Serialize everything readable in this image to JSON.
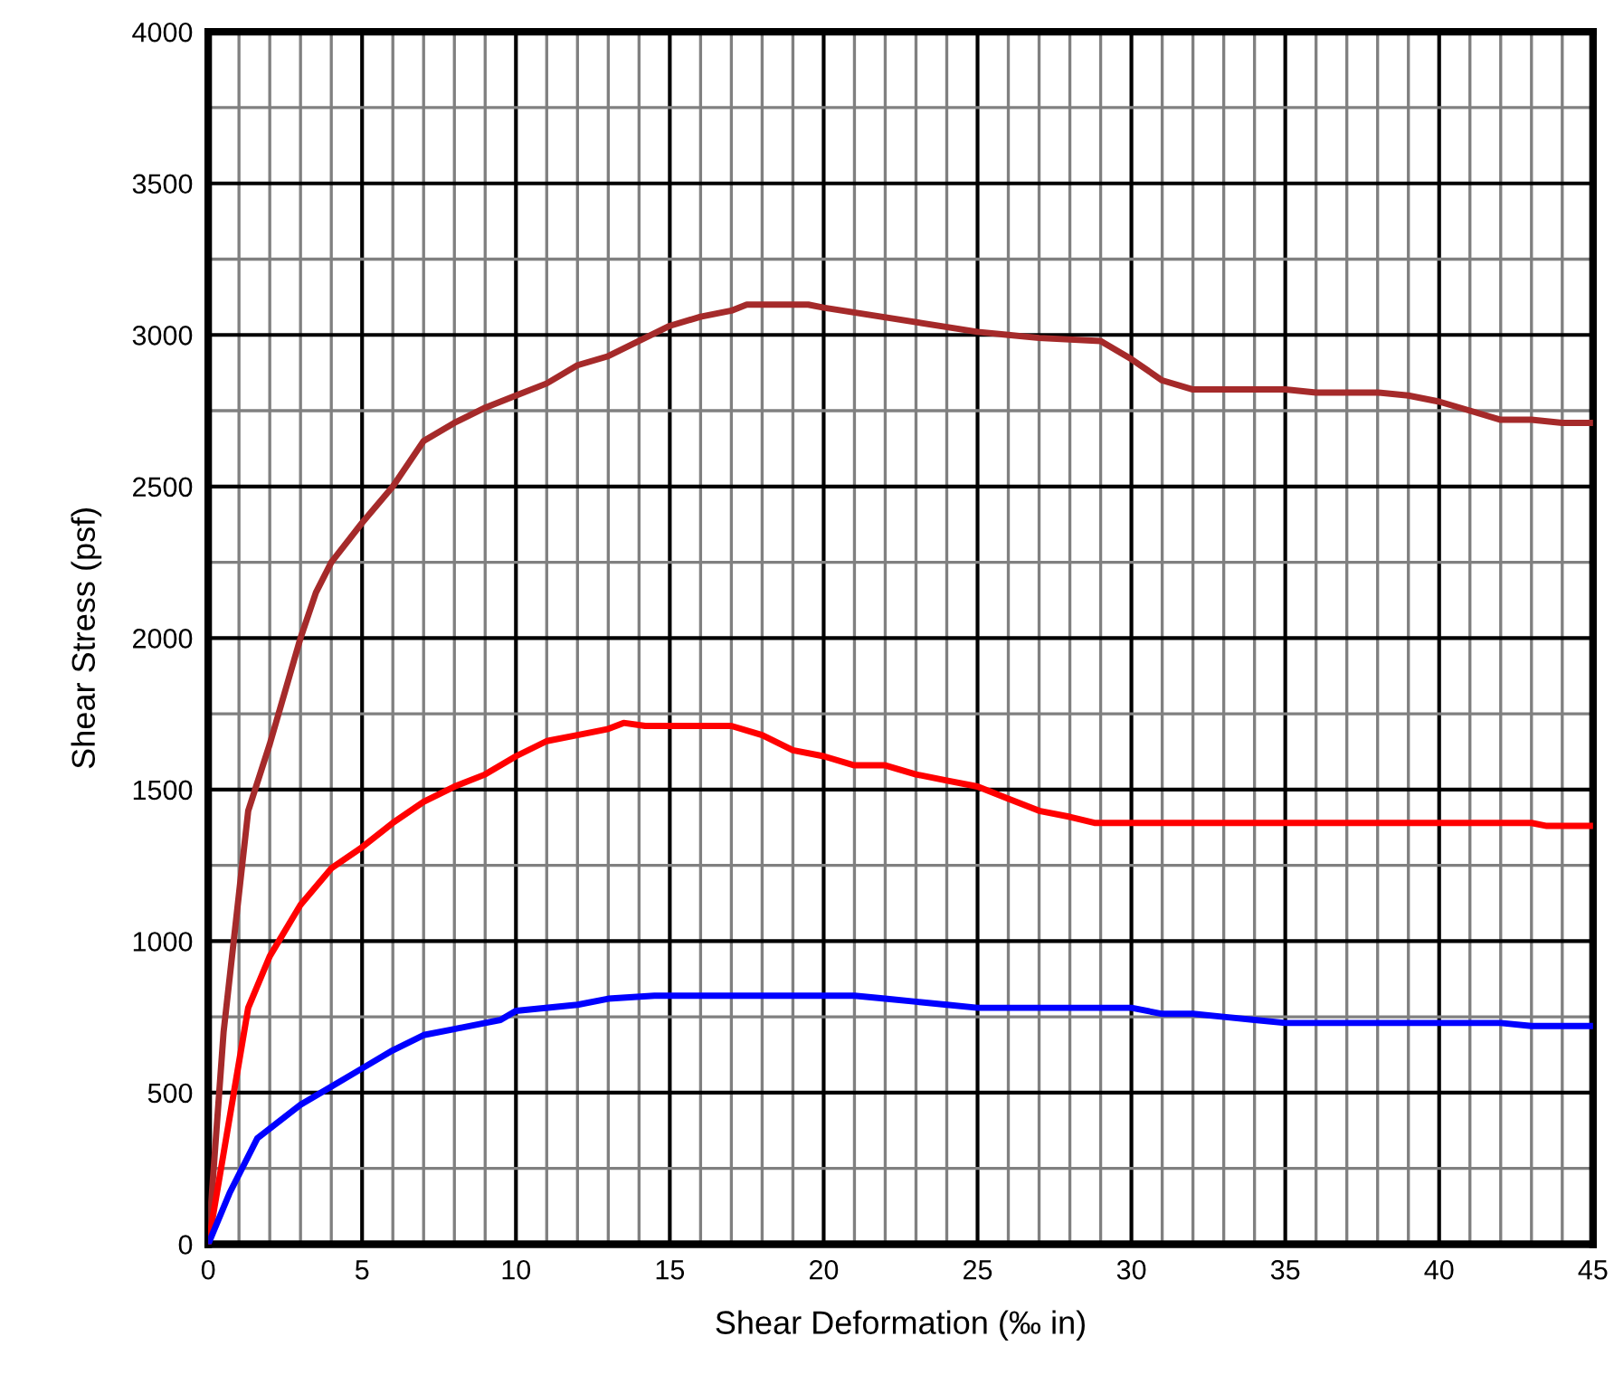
{
  "chart_data": {
    "type": "line",
    "xlabel": "Shear Deformation (‰ in)",
    "ylabel": "Shear Stress (psf)",
    "xlim": [
      0,
      45
    ],
    "ylim": [
      0,
      4000
    ],
    "xticks": [
      0,
      5,
      10,
      15,
      20,
      25,
      30,
      35,
      40,
      45
    ],
    "yticks": [
      0,
      500,
      1000,
      1500,
      2000,
      2500,
      3000,
      3500,
      4000
    ],
    "grid": true,
    "marker": "none",
    "line_style": "solid",
    "series": [
      {
        "color": "#a52a2a",
        "x": [
          0,
          0.5,
          1.3,
          2,
          3,
          3.5,
          4,
          5,
          6,
          7,
          8,
          9,
          10,
          11,
          12,
          13,
          14,
          15,
          16,
          17,
          17.5,
          19.5,
          20,
          25,
          26,
          27,
          29,
          30,
          31,
          32,
          35,
          36,
          38,
          39,
          40,
          41,
          42,
          43,
          44,
          45
        ],
        "values": [
          0,
          700,
          1430,
          1650,
          2000,
          2150,
          2250,
          2380,
          2500,
          2650,
          2710,
          2760,
          2800,
          2840,
          2900,
          2930,
          2980,
          3030,
          3060,
          3080,
          3100,
          3100,
          3090,
          3010,
          3000,
          2990,
          2980,
          2920,
          2850,
          2820,
          2820,
          2810,
          2810,
          2800,
          2780,
          2750,
          2720,
          2720,
          2710,
          2710
        ]
      },
      {
        "color": "#ff0000",
        "x": [
          0,
          1.3,
          2,
          3,
          4,
          5,
          6,
          7,
          8,
          9,
          10,
          11,
          12,
          13,
          13.5,
          14.2,
          17,
          18,
          19,
          20,
          21,
          22,
          23,
          24,
          25,
          26,
          27,
          28,
          28.8,
          43,
          43.5,
          45
        ],
        "values": [
          0,
          780,
          950,
          1120,
          1240,
          1310,
          1390,
          1460,
          1510,
          1550,
          1610,
          1660,
          1680,
          1700,
          1720,
          1710,
          1710,
          1680,
          1630,
          1610,
          1580,
          1580,
          1550,
          1530,
          1510,
          1470,
          1430,
          1410,
          1390,
          1390,
          1380,
          1380
        ]
      },
      {
        "color": "#0000ff",
        "x": [
          0,
          0.7,
          1.6,
          3,
          4,
          5,
          6,
          7,
          8,
          9,
          9.5,
          10,
          12,
          13,
          14.5,
          21,
          22,
          23,
          24,
          25,
          30,
          31,
          32,
          33,
          34,
          35,
          42,
          43,
          45
        ],
        "values": [
          0,
          170,
          350,
          460,
          520,
          580,
          640,
          690,
          710,
          730,
          740,
          770,
          790,
          810,
          820,
          820,
          810,
          800,
          790,
          780,
          780,
          760,
          760,
          750,
          740,
          730,
          730,
          720,
          720
        ]
      }
    ]
  }
}
